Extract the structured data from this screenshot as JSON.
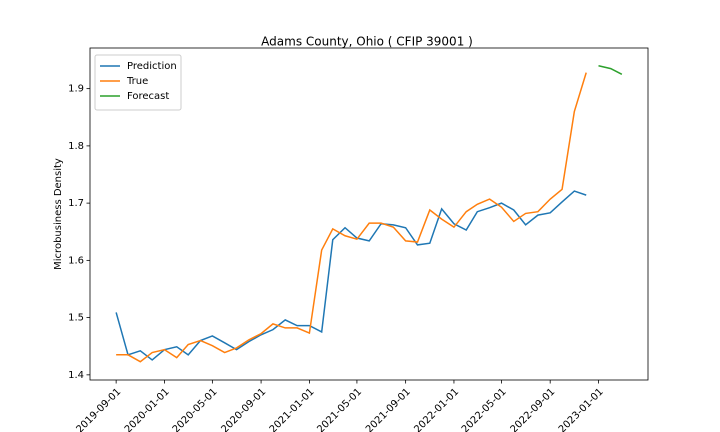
{
  "chart_data": {
    "type": "line",
    "title": "Adams County, Ohio ( CFIP 39001 )",
    "y_label": "Microbusiness Density",
    "x": [
      "2019-09-01",
      "2019-10-01",
      "2019-11-01",
      "2019-12-01",
      "2020-01-01",
      "2020-02-01",
      "2020-03-01",
      "2020-04-01",
      "2020-05-01",
      "2020-06-01",
      "2020-07-01",
      "2020-08-01",
      "2020-09-01",
      "2020-10-01",
      "2020-11-01",
      "2020-12-01",
      "2021-01-01",
      "2021-02-01",
      "2021-03-01",
      "2021-04-01",
      "2021-05-01",
      "2021-06-01",
      "2021-07-01",
      "2021-08-01",
      "2021-09-01",
      "2021-10-01",
      "2021-11-01",
      "2021-12-01",
      "2022-01-01",
      "2022-02-01",
      "2022-03-01",
      "2022-04-01",
      "2022-05-01",
      "2022-06-01",
      "2022-07-01",
      "2022-08-01",
      "2022-09-01",
      "2022-10-01",
      "2022-11-01",
      "2022-12-01"
    ],
    "series": [
      {
        "name": "Prediction",
        "color": "#1f77b4",
        "values": [
          1.509,
          1.435,
          1.442,
          1.426,
          1.444,
          1.449,
          1.435,
          1.46,
          1.468,
          1.456,
          1.444,
          1.458,
          1.47,
          1.479,
          1.496,
          1.486,
          1.486,
          1.475,
          1.636,
          1.657,
          1.639,
          1.634,
          1.664,
          1.662,
          1.657,
          1.627,
          1.63,
          1.69,
          1.664,
          1.653,
          1.685,
          1.692,
          1.7,
          1.688,
          1.662,
          1.679,
          1.683,
          1.702,
          1.721,
          1.714
        ]
      },
      {
        "name": "True",
        "color": "#ff7f0e",
        "values": [
          1.435,
          1.435,
          1.423,
          1.439,
          1.444,
          1.43,
          1.453,
          1.46,
          1.451,
          1.439,
          1.447,
          1.461,
          1.472,
          1.489,
          1.482,
          1.482,
          1.473,
          1.618,
          1.655,
          1.643,
          1.637,
          1.665,
          1.665,
          1.658,
          1.634,
          1.632,
          1.688,
          1.672,
          1.658,
          1.685,
          1.698,
          1.707,
          1.693,
          1.668,
          1.682,
          1.685,
          1.707,
          1.724,
          1.86,
          1.928
        ]
      },
      {
        "name": "Forecast",
        "color": "#2ca02c",
        "x": [
          "2023-01-01",
          "2023-02-01",
          "2023-03-01"
        ],
        "values": [
          1.94,
          1.935,
          1.925
        ]
      }
    ],
    "xlim": [
      "2019-06-27",
      "2023-05-06"
    ],
    "xticks": [
      "2019-09-01",
      "2020-01-01",
      "2020-05-01",
      "2020-09-01",
      "2021-01-01",
      "2021-05-01",
      "2021-09-01",
      "2022-01-01",
      "2022-05-01",
      "2022-09-01",
      "2023-01-01"
    ],
    "ylim": [
      1.391,
      1.971
    ],
    "yticks": [
      1.4,
      1.5,
      1.6,
      1.7,
      1.8,
      1.9
    ],
    "legend": "upper left"
  }
}
